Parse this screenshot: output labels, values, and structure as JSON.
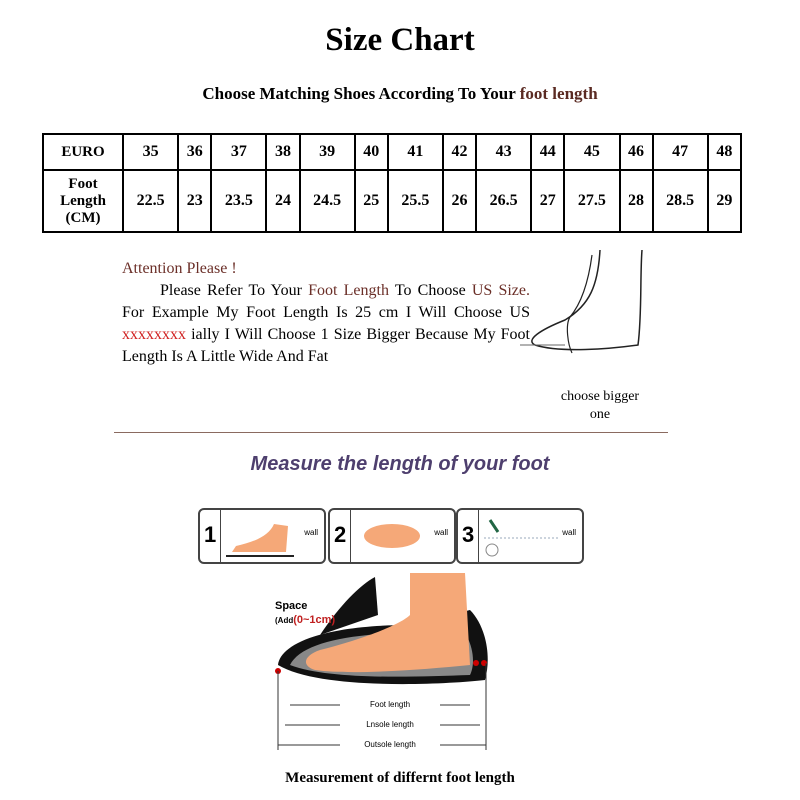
{
  "title": "Size Chart",
  "subtitle": {
    "prefix": "Choose Matching Shoes According To Your ",
    "accent": "foot length"
  },
  "table": {
    "row1_header": "EURO",
    "row2_header": "Foot Length (CM)",
    "euro": [
      "35",
      "36",
      "37",
      "38",
      "39",
      "40",
      "41",
      "42",
      "43",
      "44",
      "45",
      "46",
      "47",
      "48"
    ],
    "foot_cm": [
      "22.5",
      "23",
      "23.5",
      "24",
      "24.5",
      "25",
      "25.5",
      "26",
      "26.5",
      "27",
      "27.5",
      "28",
      "28.5",
      "29"
    ]
  },
  "note": {
    "heading": "Attention Please !",
    "t1": "Please Refer To Your ",
    "t2": "Foot Length",
    "t3": " To Choose ",
    "t4": "US Size.",
    "t5": " For Example My Foot Length Is 25 cm I Will Choose US ",
    "t6": "xxxxxxxx",
    "t7": " ially I Will Choose 1 Size Bigger Because My Foot Length Is A Little Wide And Fat"
  },
  "choose_label": "choose bigger one",
  "measure_title": "Measure the length of your foot",
  "steps": [
    {
      "n": "1",
      "wall": "wall"
    },
    {
      "n": "2",
      "wall": "wall"
    },
    {
      "n": "3",
      "wall": "wall"
    }
  ],
  "diagram": {
    "space": "Space",
    "add_prefix": "(Add",
    "add_value": "(0~1cm)",
    "foot_length": "Foot length",
    "insole_length": "Lnsole length",
    "outsole_length": "Outsole length"
  },
  "bottom_caption": "Measurement of differnt foot length",
  "colors": {
    "accent_brown": "#6b2f28",
    "red": "#d02020",
    "measure_title": "#4e3f6e",
    "skin": "#f5a878"
  }
}
